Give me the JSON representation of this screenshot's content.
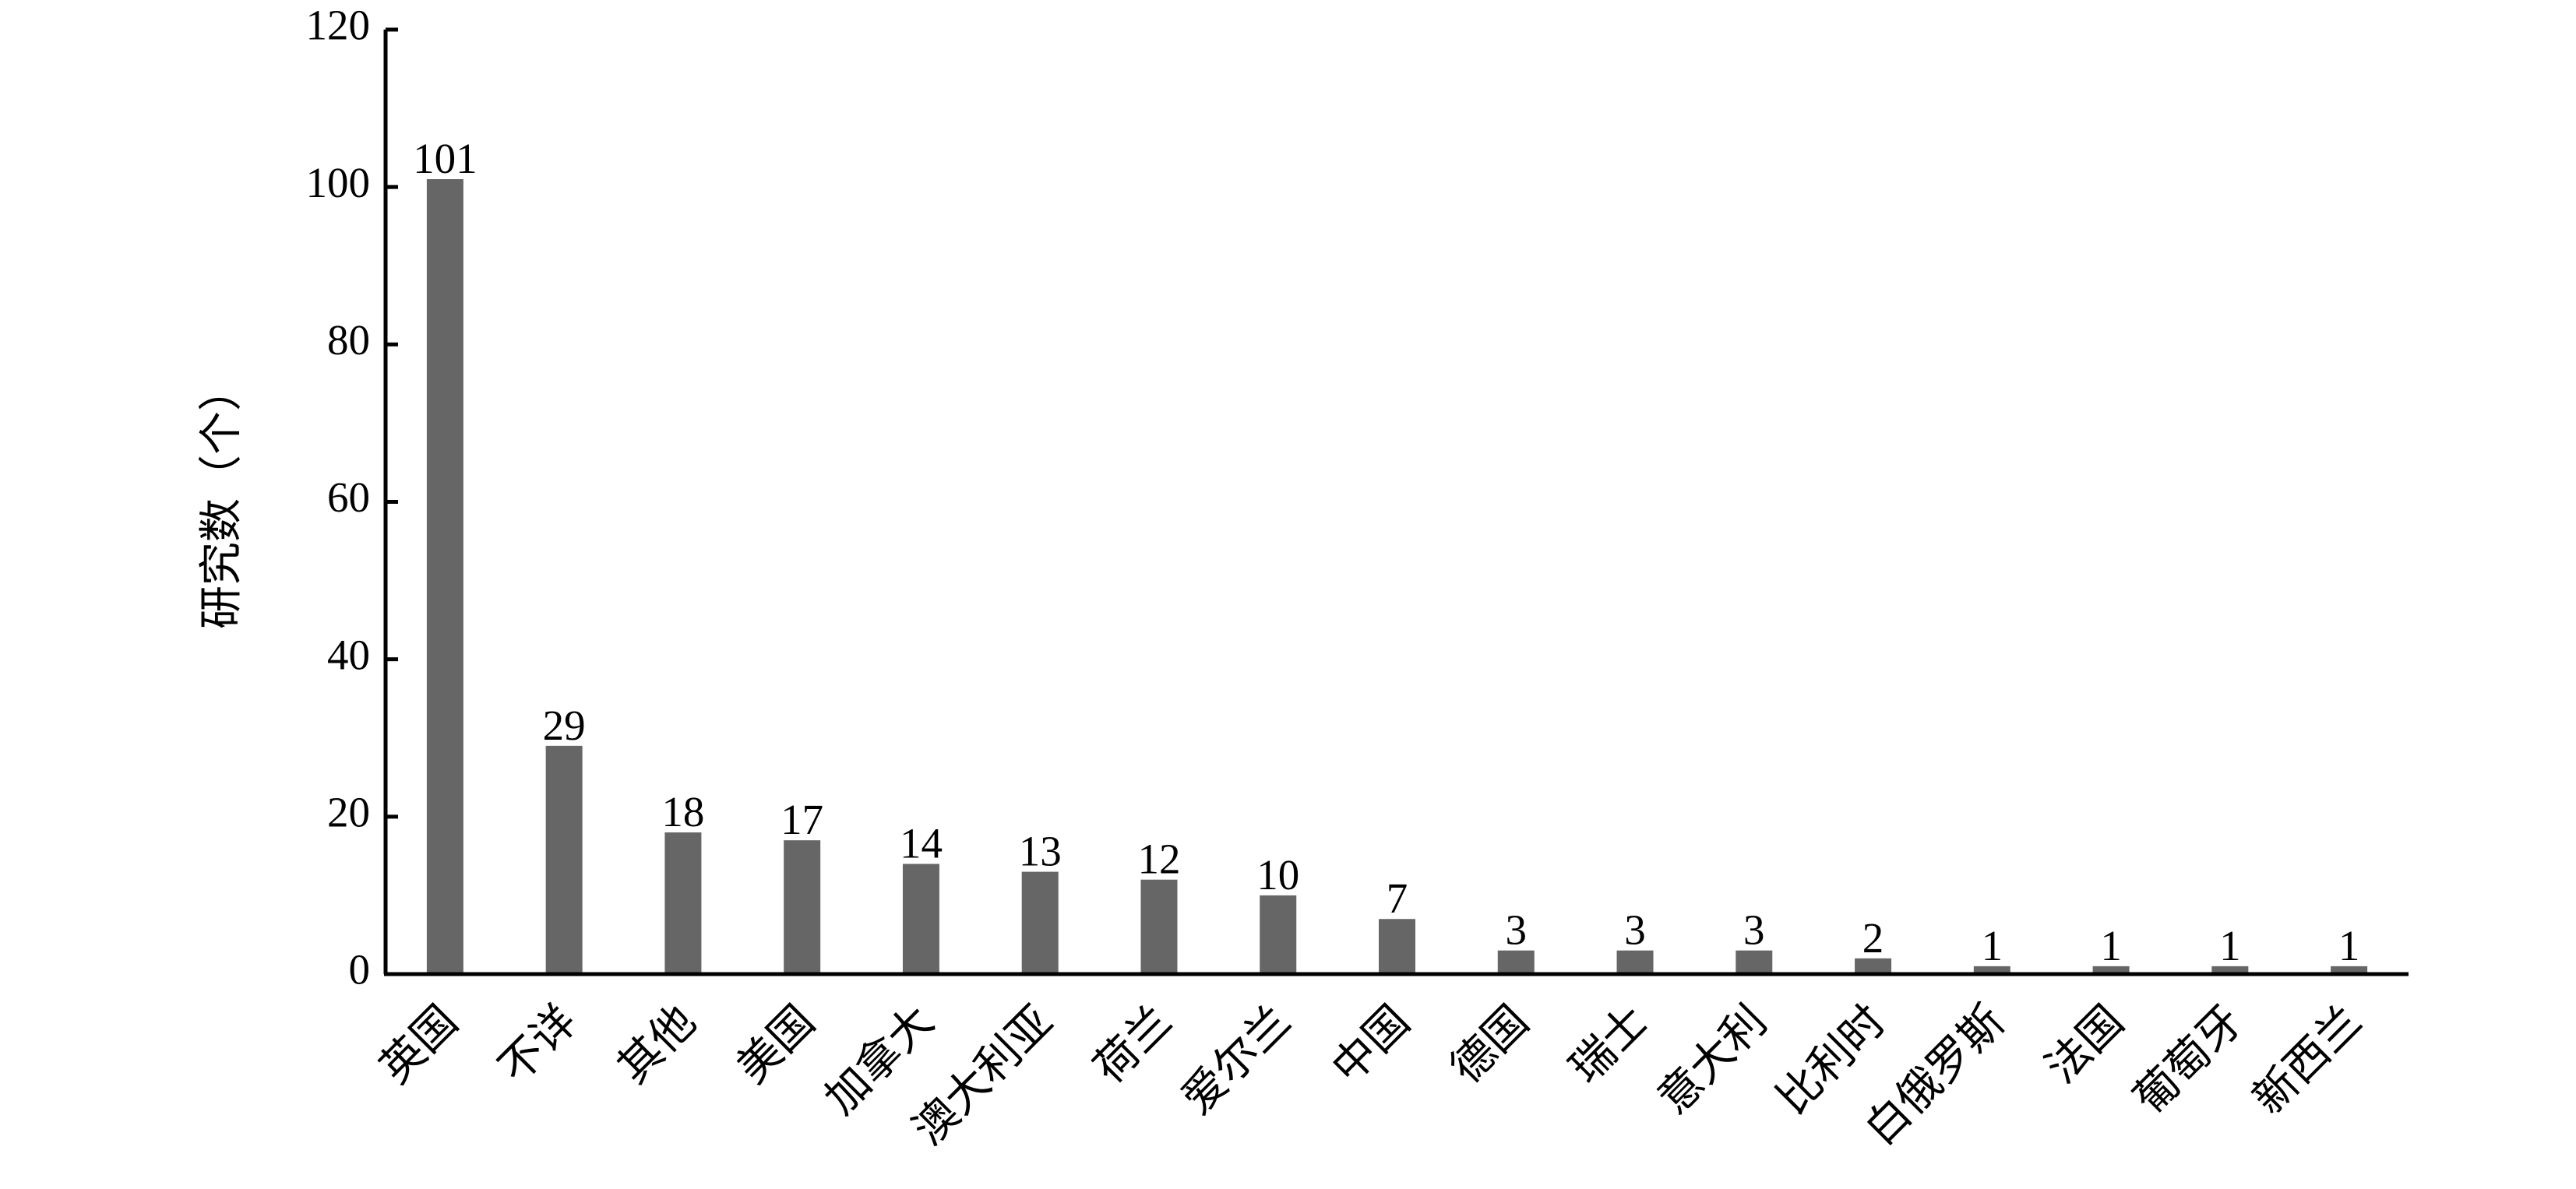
{
  "chart_data": {
    "type": "bar",
    "y_label": "研究数（个）",
    "categories": [
      "英国",
      "不详",
      "其他",
      "美国",
      "加拿大",
      "澳大利亚",
      "荷兰",
      "爱尔兰",
      "中国",
      "德国",
      "瑞士",
      "意大利",
      "比利时",
      "白俄罗斯",
      "法国",
      "葡萄牙",
      "新西兰"
    ],
    "values": [
      101,
      29,
      18,
      17,
      14,
      13,
      12,
      10,
      7,
      3,
      3,
      3,
      2,
      1,
      1,
      1,
      1
    ],
    "color": "#666666",
    "ylim": [
      0,
      120
    ],
    "yticks": [
      0,
      20,
      40,
      60,
      80,
      100,
      120
    ],
    "grid": false
  }
}
